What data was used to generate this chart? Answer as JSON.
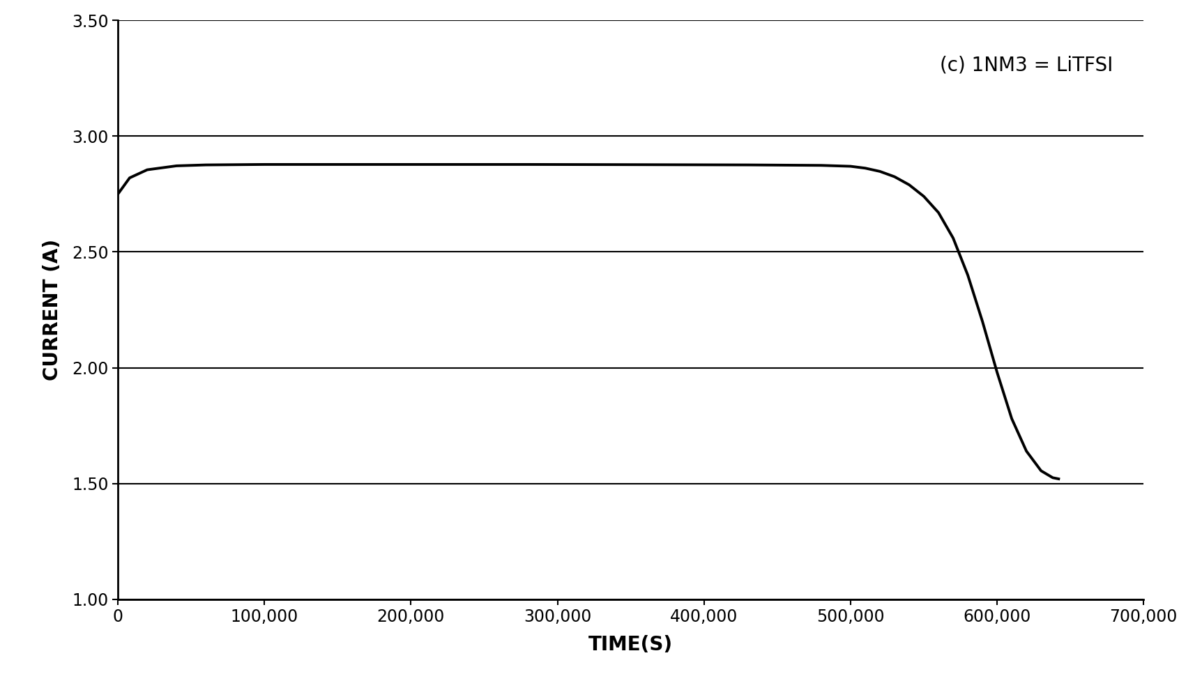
{
  "xlabel": "TIME(S)",
  "ylabel": "CURRENT (A)",
  "annotation": "(c) 1NM3 = LiTFSI",
  "xlim": [
    0,
    700000
  ],
  "ylim": [
    1.0,
    3.5
  ],
  "yticks": [
    1.0,
    1.5,
    2.0,
    2.5,
    3.0,
    3.5
  ],
  "xticks": [
    0,
    100000,
    200000,
    300000,
    400000,
    500000,
    600000,
    700000
  ],
  "xtick_labels": [
    "0",
    "100,000",
    "200,000",
    "300,000",
    "400,000",
    "500,000",
    "600,000",
    "700,000"
  ],
  "ytick_labels": [
    "1.00",
    "1.50",
    "2.00",
    "2.50",
    "3.00",
    "3.50"
  ],
  "line_color": "#000000",
  "line_width": 2.8,
  "background_color": "#ffffff",
  "curve_x": [
    0,
    8000,
    20000,
    40000,
    60000,
    100000,
    150000,
    200000,
    280000,
    360000,
    430000,
    480000,
    500000,
    510000,
    520000,
    530000,
    540000,
    550000,
    560000,
    570000,
    580000,
    590000,
    600000,
    610000,
    620000,
    630000,
    638000,
    642000
  ],
  "curve_y": [
    2.75,
    2.82,
    2.855,
    2.872,
    2.876,
    2.878,
    2.878,
    2.878,
    2.878,
    2.877,
    2.876,
    2.874,
    2.87,
    2.862,
    2.848,
    2.825,
    2.79,
    2.74,
    2.67,
    2.56,
    2.4,
    2.2,
    1.98,
    1.78,
    1.64,
    1.555,
    1.525,
    1.52
  ],
  "xlabel_fontsize": 20,
  "ylabel_fontsize": 20,
  "tick_fontsize": 17,
  "annotation_fontsize": 20,
  "grid_linewidth": 1.5,
  "spine_linewidth": 2.0
}
